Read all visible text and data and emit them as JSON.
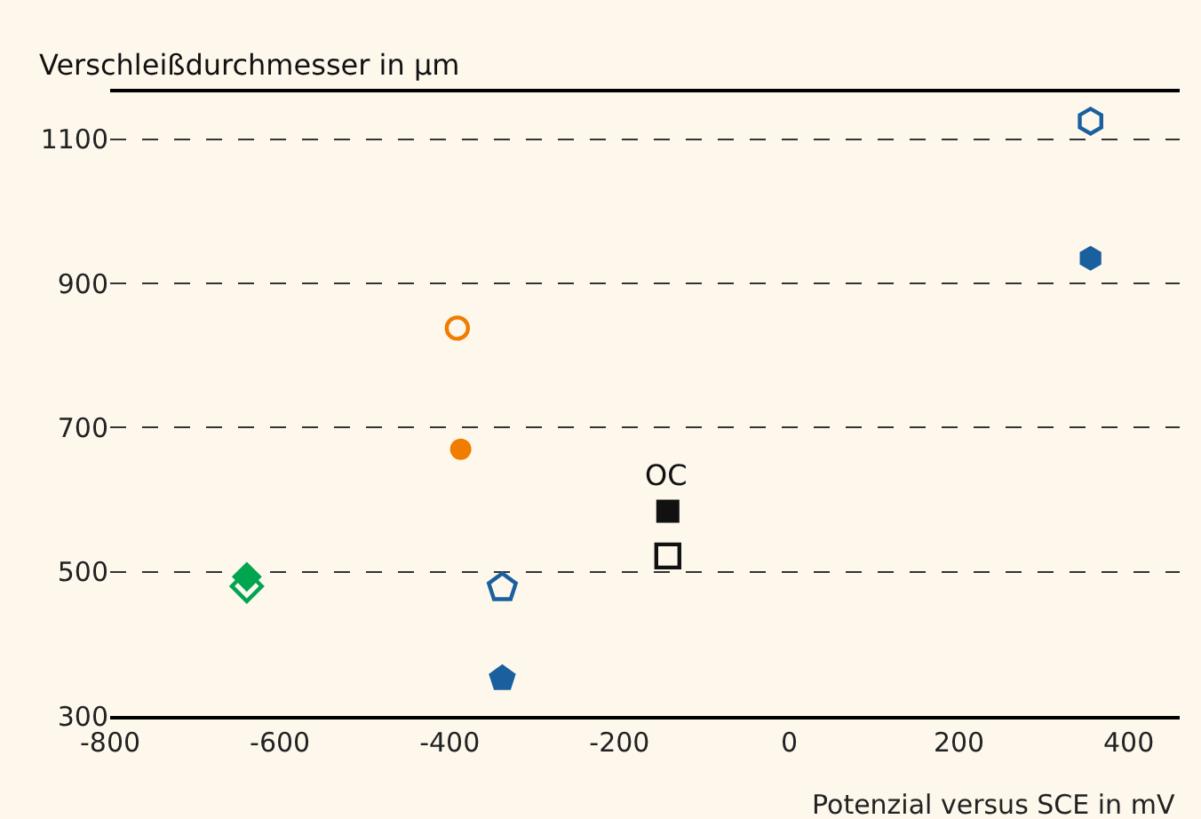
{
  "chart_data": {
    "type": "scatter",
    "ylabel": "Verschleißdurchmesser in µm",
    "xlabel": "Potenzial versus SCE in mV",
    "xlim": [
      -800,
      460
    ],
    "xticks": [
      -800,
      -600,
      -400,
      -200,
      0,
      200,
      400
    ],
    "ylim": [
      300,
      1165
    ],
    "yticks": [
      300,
      500,
      700,
      900,
      1100
    ],
    "grid": "y",
    "annotations": [
      "OC"
    ],
    "series": [
      {
        "color": "#1a5f9e",
        "x": [
          355
        ],
        "values": [
          1125
        ]
      },
      {
        "color": "#1a5f9e",
        "x": [
          355
        ],
        "values": [
          935
        ]
      },
      {
        "color": "#f07c00",
        "marker": "circle",
        "x": [
          -391
        ],
        "values": [
          838
        ]
      },
      {
        "color": "#f07c00",
        "marker": "circle",
        "x": [
          -387
        ],
        "values": [
          670
        ]
      },
      {
        "color": "#111111",
        "marker": "square",
        "x": [
          -143
        ],
        "values": [
          584
        ]
      },
      {
        "color": "#111111",
        "marker": "square",
        "x": [
          -143
        ],
        "values": [
          522
        ]
      },
      {
        "color": "#00a550",
        "marker": "diamond",
        "x": [
          -639
        ],
        "values": [
          493
        ]
      },
      {
        "color": "#00a550",
        "marker": "diamond",
        "x": [
          -639
        ],
        "values": [
          480
        ]
      },
      {
        "color": "#1a5f9e",
        "x": [
          -338
        ],
        "values": [
          478
        ]
      },
      {
        "color": "#1a5f9e",
        "x": [
          -338
        ],
        "values": [
          352
        ]
      }
    ]
  }
}
